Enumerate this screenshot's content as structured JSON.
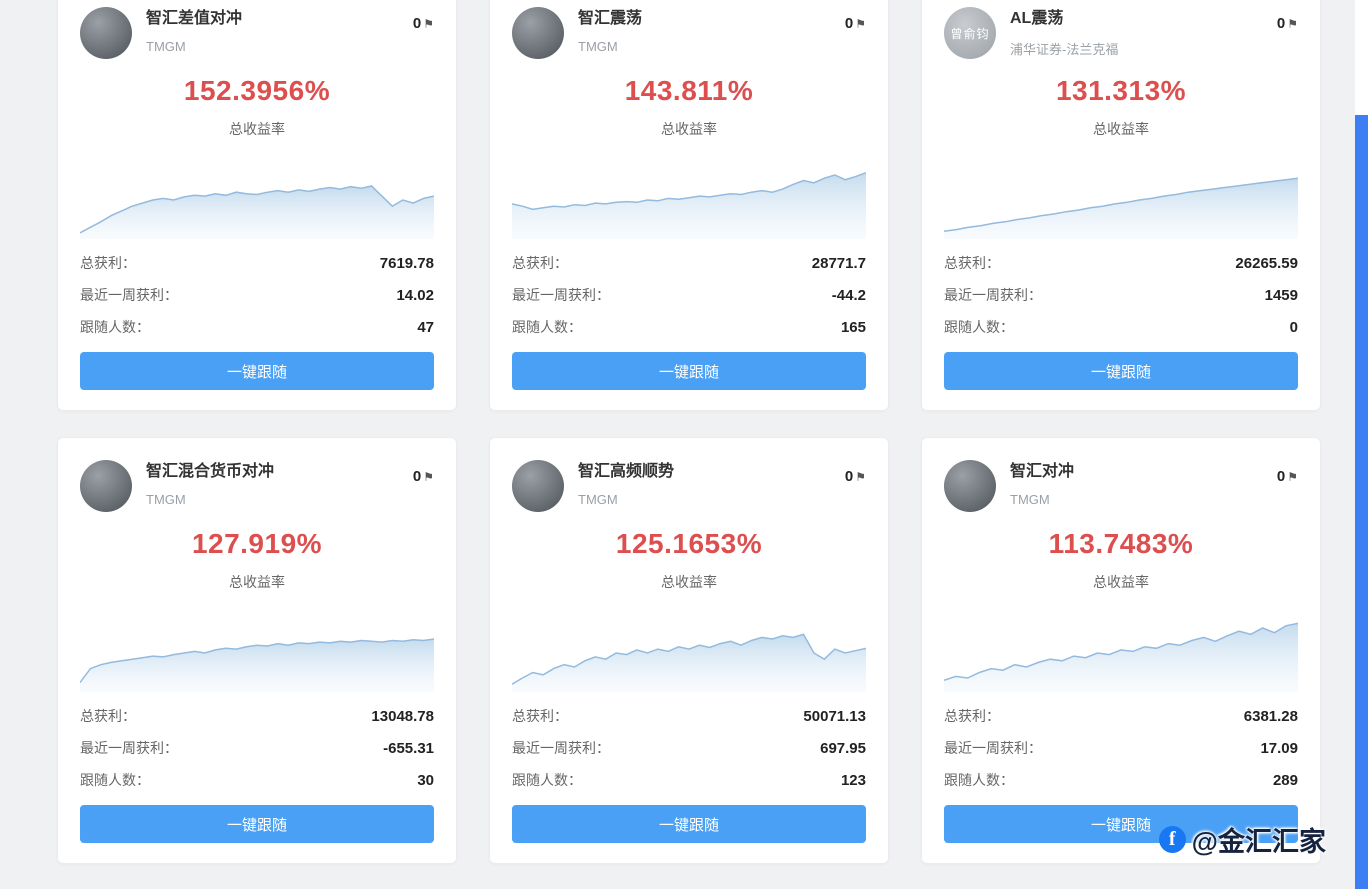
{
  "page": {
    "background": "#f0f1f3",
    "scrollbar_color": "#3d7ef5",
    "accent_blue": "#4aa0f5",
    "accent_red": "#dd4f4f"
  },
  "labels": {
    "total_return": "总收益率",
    "total_profit": "总获利：",
    "week_profit": "最近一周获利：",
    "followers": "跟随人数：",
    "follow_button": "一键跟随"
  },
  "watermark": {
    "icon": "facebook-icon",
    "text": "@金汇汇家"
  },
  "cards": [
    {
      "name": "智汇差值对冲",
      "broker": "TMGM",
      "flags": "0",
      "return_pct": "152.3956%",
      "total_profit": "7619.78",
      "week_profit": "14.02",
      "followers": "47",
      "avatar_text": "",
      "spark": [
        0.08,
        0.15,
        0.22,
        0.3,
        0.36,
        0.42,
        0.46,
        0.5,
        0.52,
        0.5,
        0.54,
        0.56,
        0.55,
        0.58,
        0.56,
        0.6,
        0.58,
        0.57,
        0.6,
        0.62,
        0.6,
        0.63,
        0.61,
        0.64,
        0.66,
        0.64,
        0.67,
        0.65,
        0.68,
        0.55,
        0.42,
        0.5,
        0.46,
        0.52,
        0.55
      ]
    },
    {
      "name": "智汇震荡",
      "broker": "TMGM",
      "flags": "0",
      "return_pct": "143.811%",
      "total_profit": "28771.7",
      "week_profit": "-44.2",
      "followers": "165",
      "avatar_text": "",
      "spark": [
        0.45,
        0.42,
        0.38,
        0.4,
        0.42,
        0.41,
        0.44,
        0.43,
        0.46,
        0.45,
        0.47,
        0.48,
        0.47,
        0.5,
        0.49,
        0.52,
        0.51,
        0.53,
        0.55,
        0.54,
        0.56,
        0.58,
        0.57,
        0.6,
        0.62,
        0.6,
        0.64,
        0.7,
        0.75,
        0.72,
        0.78,
        0.82,
        0.76,
        0.8,
        0.85
      ]
    },
    {
      "name": "AL震荡",
      "broker": "浦华证券-法兰克福",
      "flags": "0",
      "return_pct": "131.313%",
      "total_profit": "26265.59",
      "week_profit": "1459",
      "followers": "0",
      "avatar_text": "曾俞钧",
      "spark": [
        0.1,
        0.12,
        0.15,
        0.17,
        0.2,
        0.22,
        0.25,
        0.27,
        0.3,
        0.32,
        0.35,
        0.37,
        0.4,
        0.42,
        0.45,
        0.47,
        0.5,
        0.52,
        0.55,
        0.57,
        0.6,
        0.62,
        0.64,
        0.66,
        0.68,
        0.7,
        0.72,
        0.74,
        0.76,
        0.78
      ]
    },
    {
      "name": "智汇混合货币对冲",
      "broker": "TMGM",
      "flags": "0",
      "return_pct": "127.919%",
      "total_profit": "13048.78",
      "week_profit": "-655.31",
      "followers": "30",
      "avatar_text": "",
      "spark": [
        0.12,
        0.3,
        0.35,
        0.38,
        0.4,
        0.42,
        0.44,
        0.46,
        0.45,
        0.48,
        0.5,
        0.52,
        0.5,
        0.54,
        0.56,
        0.55,
        0.58,
        0.6,
        0.59,
        0.62,
        0.6,
        0.63,
        0.62,
        0.64,
        0.63,
        0.65,
        0.64,
        0.66,
        0.65,
        0.64,
        0.66,
        0.65,
        0.67,
        0.66,
        0.68
      ]
    },
    {
      "name": "智汇高频顺势",
      "broker": "TMGM",
      "flags": "0",
      "return_pct": "125.1653%",
      "total_profit": "50071.13",
      "week_profit": "697.95",
      "followers": "123",
      "avatar_text": "",
      "spark": [
        0.1,
        0.18,
        0.25,
        0.22,
        0.3,
        0.35,
        0.32,
        0.4,
        0.45,
        0.42,
        0.5,
        0.48,
        0.54,
        0.5,
        0.55,
        0.52,
        0.58,
        0.55,
        0.6,
        0.57,
        0.62,
        0.65,
        0.6,
        0.66,
        0.7,
        0.68,
        0.72,
        0.7,
        0.74,
        0.5,
        0.42,
        0.55,
        0.5,
        0.53,
        0.56
      ]
    },
    {
      "name": "智汇对冲",
      "broker": "TMGM",
      "flags": "0",
      "return_pct": "113.7483%",
      "total_profit": "6381.28",
      "week_profit": "17.09",
      "followers": "289",
      "avatar_text": "",
      "spark": [
        0.15,
        0.2,
        0.18,
        0.25,
        0.3,
        0.28,
        0.35,
        0.32,
        0.38,
        0.42,
        0.4,
        0.46,
        0.44,
        0.5,
        0.48,
        0.54,
        0.52,
        0.58,
        0.56,
        0.62,
        0.6,
        0.66,
        0.7,
        0.65,
        0.72,
        0.78,
        0.74,
        0.82,
        0.76,
        0.85,
        0.88
      ]
    }
  ]
}
